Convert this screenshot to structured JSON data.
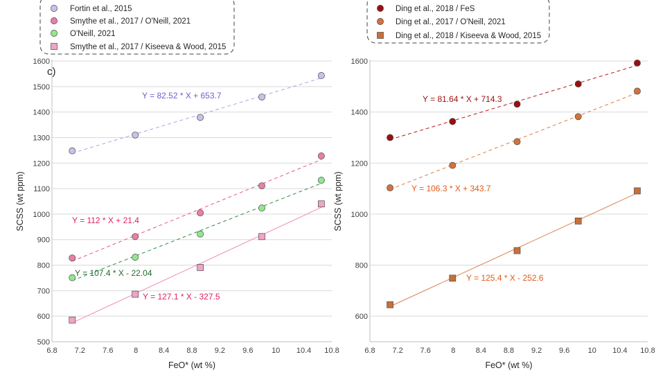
{
  "chart_data": [
    {
      "type": "scatter",
      "panel_label": "c)",
      "xlabel": "FeO* (wt %)",
      "ylabel": "SCSS (wt ppm)",
      "xlim": [
        6.8,
        10.8
      ],
      "ylim": [
        500,
        1600
      ],
      "xticks": [
        "6.8",
        "7.2",
        "7.6",
        "8",
        "8.4",
        "8.8",
        "9.2",
        "9.6",
        "10",
        "10.4",
        "10.8"
      ],
      "yticks": [
        "500",
        "600",
        "700",
        "800",
        "900",
        "1000",
        "1100",
        "1200",
        "1300",
        "1400",
        "1500",
        "1600"
      ],
      "grid": "horizontal",
      "legend_position": "top, above plot",
      "x": [
        7.09,
        7.99,
        8.92,
        9.8,
        10.65
      ],
      "series": [
        {
          "name": "Fortin et al., 2015",
          "marker": "circle",
          "color": "#c5c3ea",
          "line_color": "#a9a4e6",
          "line_style": "dashed",
          "values": [
            1248,
            1310,
            1379,
            1459,
            1543
          ],
          "fit": "Y = 82.52 * X + 653.7",
          "fit_color": "#6a5fd6"
        },
        {
          "name": "Smythe et al., 2017 / O'Neill, 2021",
          "marker": "circle",
          "color": "#e87fa8",
          "line_color": "#e8537f",
          "line_style": "dashed",
          "values": [
            828,
            912,
            1005,
            1111,
            1228
          ],
          "fit": "Y = 112 * X + 21.4",
          "fit_color": "#e0206a"
        },
        {
          "name": "O'Neill, 2021",
          "marker": "circle",
          "color": "#8fe88f",
          "line_color": "#2e8b44",
          "line_style": "dashed",
          "values": [
            751,
            831,
            922,
            1024,
            1133
          ],
          "fit": "Y = 107.4 * X - 22.04",
          "fit_color": "#1e6b2e"
        },
        {
          "name": "Smythe et al., 2017 / Kiseeva & Wood, 2015",
          "marker": "square",
          "color": "#f0a4c6",
          "line_color": "#f08ab5",
          "line_style": "solid",
          "values": [
            585,
            686,
            791,
            912,
            1040
          ],
          "fit": "Y = 127.1 * X - 327.5",
          "fit_color": "#e0206a"
        }
      ]
    },
    {
      "type": "scatter",
      "xlabel": "FeO* (wt %)",
      "ylabel": "SCSS (wt ppm)",
      "xlim": [
        6.8,
        10.8
      ],
      "ylim": [
        500,
        1600
      ],
      "xticks": [
        "6.8",
        "7.2",
        "7.6",
        "8",
        "8.4",
        "8.8",
        "9.2",
        "9.6",
        "10",
        "10.4",
        "10.8"
      ],
      "yticks": [
        "600",
        "800",
        "1000",
        "1200",
        "1400",
        "1600"
      ],
      "grid": "horizontal",
      "legend_position": "top, above plot",
      "x": [
        7.09,
        7.99,
        8.92,
        9.8,
        10.65
      ],
      "series": [
        {
          "name": "Ding et al., 2018 / FeS",
          "marker": "circle",
          "color": "#9b0f0f",
          "line_color": "#b01818",
          "line_style": "dashed",
          "values": [
            1300,
            1363,
            1431,
            1510,
            1592
          ],
          "fit": "Y = 81.64 * X + 714.3",
          "fit_color": "#a01010"
        },
        {
          "name": "Ding et al., 2017 / O'Neill, 2021",
          "marker": "circle",
          "color": "#d2733a",
          "line_color": "#e07a40",
          "line_style": "dashed",
          "values": [
            1103,
            1191,
            1284,
            1382,
            1482
          ],
          "fit": "Y = 106.3 * X + 343.7",
          "fit_color": "#e05a18"
        },
        {
          "name": "Ding et al., 2018 / Kiseeva & Wood, 2015",
          "marker": "square",
          "color": "#c8703a",
          "line_color": "#d88050",
          "line_style": "solid",
          "values": [
            645,
            749,
            857,
            973,
            1091
          ],
          "fit": "Y = 125.4 * X - 252.6",
          "fit_color": "#e05a18"
        }
      ]
    }
  ]
}
